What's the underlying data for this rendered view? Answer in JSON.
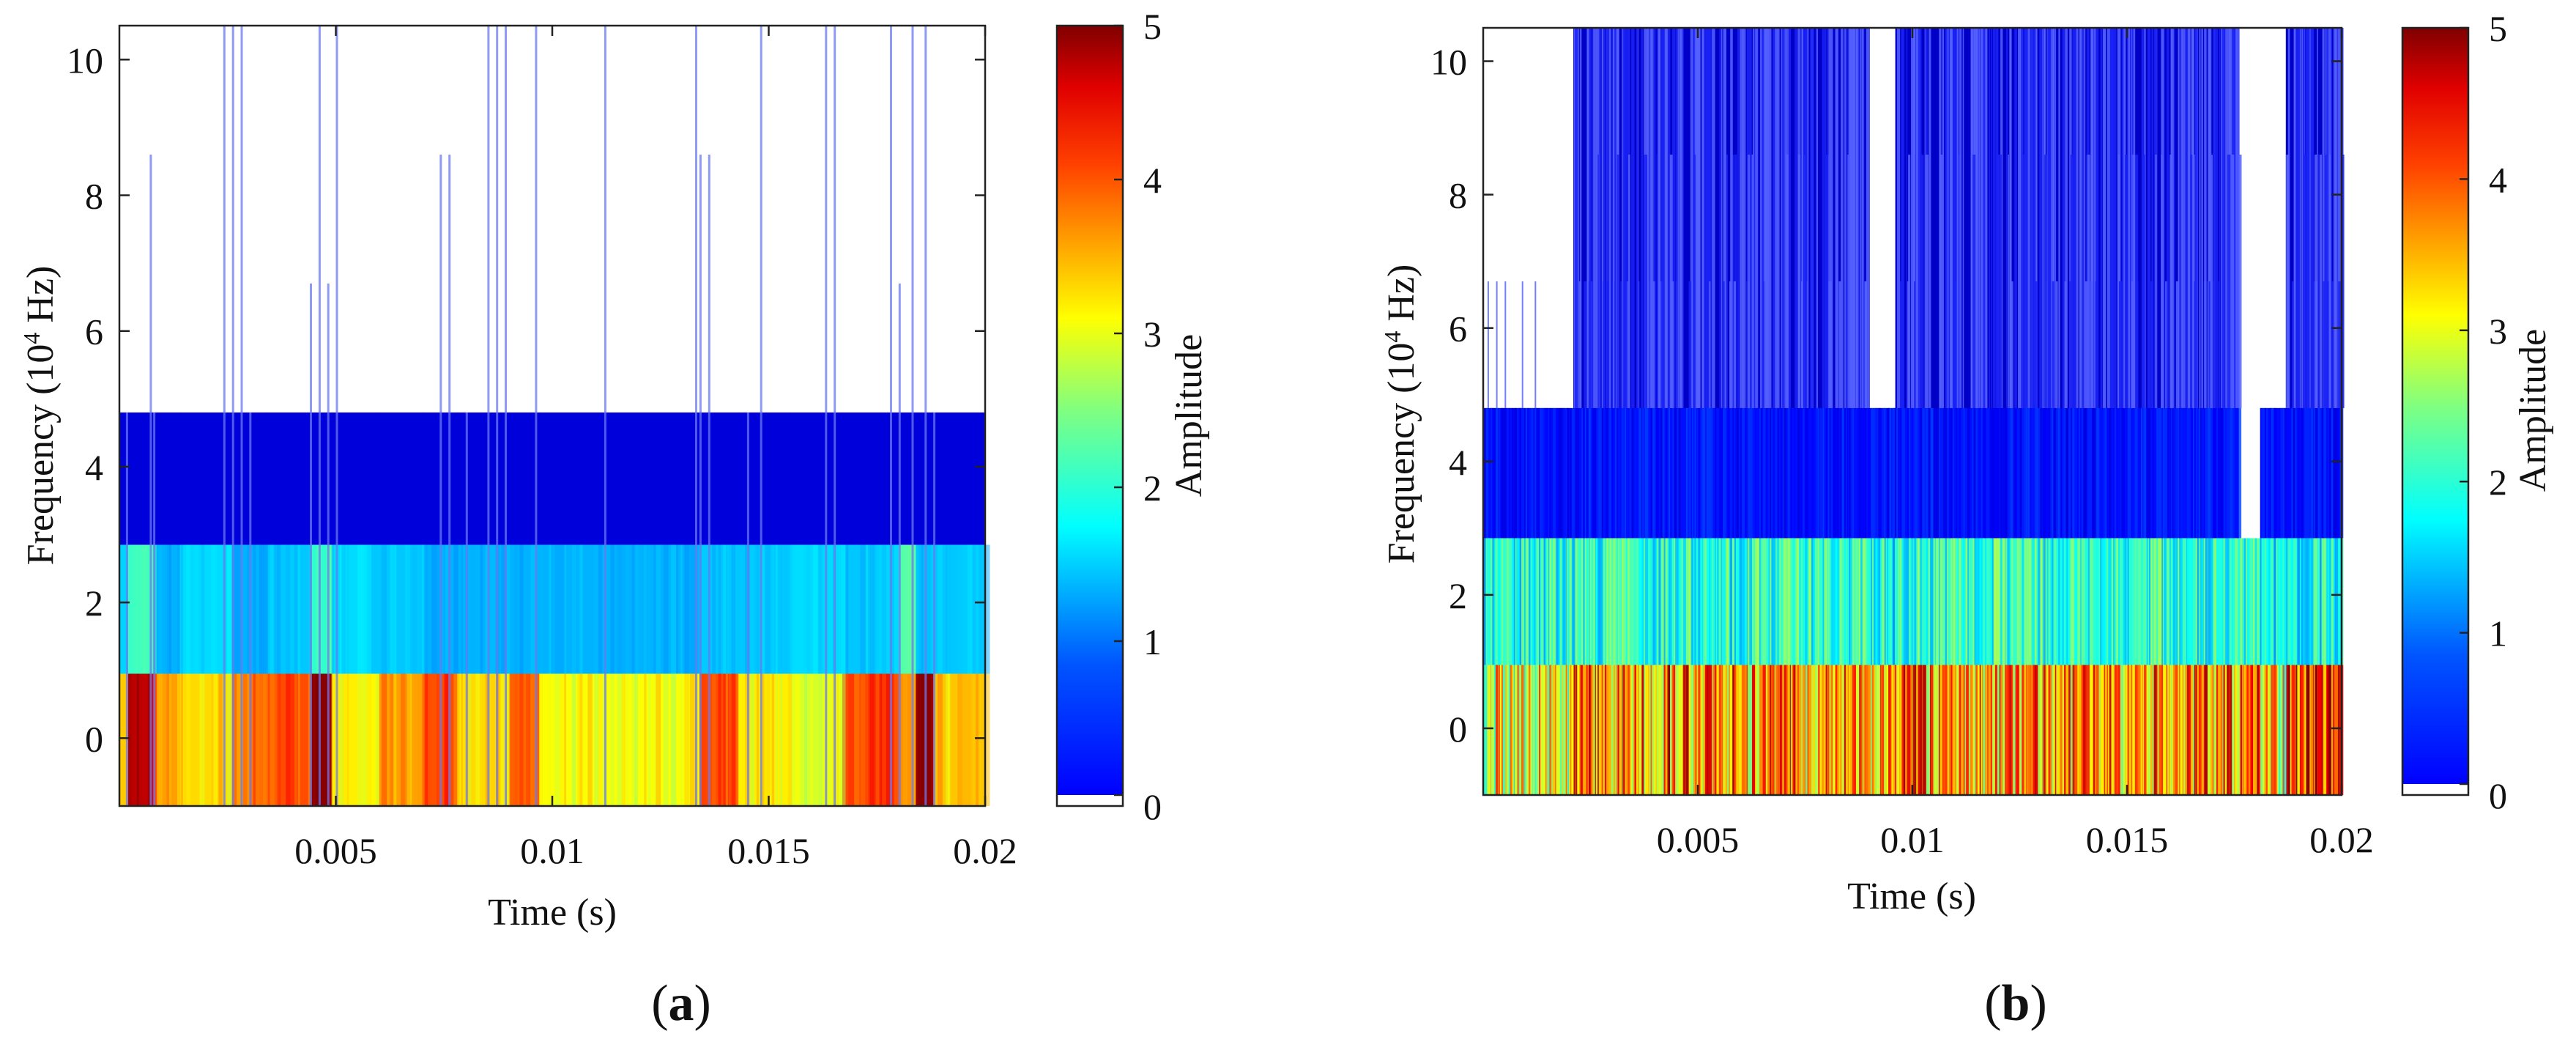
{
  "colormap": {
    "name": "jet",
    "stops": [
      "#00008f",
      "#0000ff",
      "#00ffff",
      "#ffff00",
      "#ff0000",
      "#800000"
    ],
    "below_min_color": "#ffffff"
  },
  "chart_data": [
    {
      "type": "heatmap",
      "panel_label": "a",
      "xlabel": "Time (s)",
      "ylabel_prefix": "Frequency (10",
      "ylabel_exp": "4",
      "ylabel_suffix": " Hz)",
      "colorbar_label": "Amplitude",
      "xlim": [
        0,
        0.02
      ],
      "ylim": [
        -1,
        10.5
      ],
      "clim": [
        0,
        5
      ],
      "xticks": [
        0.005,
        0.01,
        0.015,
        0.02
      ],
      "xtick_labels": [
        "0.005",
        "0.01",
        "0.015",
        "0.02"
      ],
      "yticks": [
        0,
        2,
        4,
        6,
        8,
        10
      ],
      "ytick_labels": [
        "0",
        "2",
        "4",
        "6",
        "8",
        "10"
      ],
      "cticks": [
        0,
        1,
        2,
        3,
        4,
        5
      ],
      "ctick_labels": [
        "0",
        "1",
        "2",
        "3",
        "4",
        "5"
      ],
      "frequency_bands": [
        {
          "low": -1,
          "high": 0.95,
          "base_amplitude": 3.6
        },
        {
          "low": 0.95,
          "high": 2.85,
          "base_amplitude": 1.6
        },
        {
          "low": 2.85,
          "high": 4.8,
          "base_amplitude": 0.45
        },
        {
          "low": 4.8,
          "high": 6.7,
          "base_amplitude": 0
        },
        {
          "low": 6.7,
          "high": 8.6,
          "base_amplitude": 0
        },
        {
          "low": 8.6,
          "high": 10.5,
          "base_amplitude": 0
        }
      ],
      "time_segments": [
        {
          "t0": 0.0,
          "t1": 0.0002,
          "amps": [
            3.4,
            1.7,
            0.45,
            0,
            0,
            0
          ]
        },
        {
          "t0": 0.0002,
          "t1": 0.0008,
          "amps": [
            4.7,
            2.2,
            0.45,
            0,
            0,
            0
          ]
        },
        {
          "t0": 0.0008,
          "t1": 0.0014,
          "amps": [
            3.6,
            1.5,
            0.45,
            0,
            0,
            0
          ]
        },
        {
          "t0": 0.0014,
          "t1": 0.0026,
          "amps": [
            3.3,
            1.7,
            0.45,
            0,
            0,
            0
          ]
        },
        {
          "t0": 0.0026,
          "t1": 0.0034,
          "amps": [
            3.8,
            1.5,
            0.45,
            0,
            0,
            0
          ]
        },
        {
          "t0": 0.0034,
          "t1": 0.0044,
          "amps": [
            4.0,
            1.6,
            0.45,
            0,
            0,
            0
          ]
        },
        {
          "t0": 0.0044,
          "t1": 0.0049,
          "amps": [
            5.0,
            2.2,
            0.45,
            0,
            0,
            0
          ]
        },
        {
          "t0": 0.0049,
          "t1": 0.006,
          "amps": [
            3.2,
            1.7,
            0.45,
            0,
            0,
            0
          ]
        },
        {
          "t0": 0.006,
          "t1": 0.007,
          "amps": [
            3.6,
            1.6,
            0.45,
            0,
            0,
            0
          ]
        },
        {
          "t0": 0.007,
          "t1": 0.0078,
          "amps": [
            4.0,
            1.5,
            0.45,
            0,
            0,
            0
          ]
        },
        {
          "t0": 0.0078,
          "t1": 0.009,
          "amps": [
            3.3,
            1.5,
            0.45,
            0,
            0,
            0
          ]
        },
        {
          "t0": 0.009,
          "t1": 0.0097,
          "amps": [
            3.9,
            1.5,
            0.45,
            0,
            0,
            0
          ]
        },
        {
          "t0": 0.0097,
          "t1": 0.0134,
          "amps": [
            3.1,
            1.5,
            0.45,
            0,
            0,
            0
          ]
        },
        {
          "t0": 0.0134,
          "t1": 0.0143,
          "amps": [
            4.0,
            1.6,
            0.45,
            0,
            0,
            0
          ]
        },
        {
          "t0": 0.0143,
          "t1": 0.0155,
          "amps": [
            3.2,
            1.6,
            0.45,
            0,
            0,
            0
          ]
        },
        {
          "t0": 0.0155,
          "t1": 0.0167,
          "amps": [
            3.0,
            1.7,
            0.45,
            0,
            0,
            0
          ]
        },
        {
          "t0": 0.0167,
          "t1": 0.018,
          "amps": [
            4.1,
            1.6,
            0.45,
            0,
            0,
            0
          ]
        },
        {
          "t0": 0.018,
          "t1": 0.0184,
          "amps": [
            3.6,
            2.3,
            0.45,
            0,
            0,
            0
          ]
        },
        {
          "t0": 0.0184,
          "t1": 0.0188,
          "amps": [
            4.9,
            1.6,
            0.45,
            0,
            0,
            0
          ]
        },
        {
          "t0": 0.0188,
          "t1": 0.02,
          "amps": [
            3.4,
            1.6,
            0.45,
            0,
            0,
            0
          ]
        }
      ],
      "spikes": [
        {
          "t": 0.00015,
          "top": 4.8,
          "amp": 0.5
        },
        {
          "t": 0.0007,
          "top": 8.6,
          "amp": 0.4
        },
        {
          "t": 0.00078,
          "top": 4.8,
          "amp": 0.5
        },
        {
          "t": 0.0024,
          "top": 10.5,
          "amp": 0.5
        },
        {
          "t": 0.0026,
          "top": 10.5,
          "amp": 0.5
        },
        {
          "t": 0.0028,
          "top": 10.5,
          "amp": 0.5
        },
        {
          "t": 0.003,
          "top": 4.8,
          "amp": 0.5
        },
        {
          "t": 0.0044,
          "top": 6.7,
          "amp": 0.5
        },
        {
          "t": 0.0046,
          "top": 10.5,
          "amp": 0.5
        },
        {
          "t": 0.0048,
          "top": 6.7,
          "amp": 0.5
        },
        {
          "t": 0.005,
          "top": 10.5,
          "amp": 0.5
        },
        {
          "t": 0.0074,
          "top": 8.6,
          "amp": 0.5
        },
        {
          "t": 0.0076,
          "top": 8.6,
          "amp": 0.5
        },
        {
          "t": 0.008,
          "top": 4.8,
          "amp": 0.5
        },
        {
          "t": 0.0085,
          "top": 10.5,
          "amp": 0.5
        },
        {
          "t": 0.0087,
          "top": 10.5,
          "amp": 0.5
        },
        {
          "t": 0.0089,
          "top": 10.5,
          "amp": 0.5
        },
        {
          "t": 0.0096,
          "top": 10.5,
          "amp": 0.5
        },
        {
          "t": 0.0112,
          "top": 10.5,
          "amp": 0.5
        },
        {
          "t": 0.0133,
          "top": 10.5,
          "amp": 0.5
        },
        {
          "t": 0.0134,
          "top": 8.6,
          "amp": 0.5
        },
        {
          "t": 0.0136,
          "top": 8.6,
          "amp": 0.5
        },
        {
          "t": 0.0145,
          "top": 4.8,
          "amp": 0.5
        },
        {
          "t": 0.0148,
          "top": 10.5,
          "amp": 0.5
        },
        {
          "t": 0.0163,
          "top": 10.5,
          "amp": 0.5
        },
        {
          "t": 0.0165,
          "top": 10.5,
          "amp": 0.5
        },
        {
          "t": 0.0178,
          "top": 10.5,
          "amp": 0.5
        },
        {
          "t": 0.018,
          "top": 6.7,
          "amp": 0.5
        },
        {
          "t": 0.0183,
          "top": 10.5,
          "amp": 0.5
        },
        {
          "t": 0.0186,
          "top": 10.5,
          "amp": 0.5
        },
        {
          "t": 0.0188,
          "top": 4.8,
          "amp": 0.5
        }
      ]
    },
    {
      "type": "heatmap",
      "panel_label": "b",
      "xlabel": "Time (s)",
      "ylabel_prefix": "Frequency (10",
      "ylabel_exp": "4",
      "ylabel_suffix": " Hz)",
      "colorbar_label": "Amplitude",
      "xlim": [
        0,
        0.02
      ],
      "ylim": [
        -1,
        10.5
      ],
      "clim": [
        0,
        5
      ],
      "xticks": [
        0.005,
        0.01,
        0.015,
        0.02
      ],
      "xtick_labels": [
        "0.005",
        "0.01",
        "0.015",
        "0.02"
      ],
      "yticks": [
        0,
        2,
        4,
        6,
        8,
        10
      ],
      "ytick_labels": [
        "0",
        "2",
        "4",
        "6",
        "8",
        "10"
      ],
      "cticks": [
        0,
        1,
        2,
        3,
        4,
        5
      ],
      "ctick_labels": [
        "0",
        "1",
        "2",
        "3",
        "4",
        "5"
      ],
      "frequency_bands": [
        {
          "low": -1,
          "high": 0.95,
          "base_amplitude": 3.5
        },
        {
          "low": 0.95,
          "high": 2.85,
          "base_amplitude": 2.0
        },
        {
          "low": 2.85,
          "high": 4.8,
          "base_amplitude": 0.7
        },
        {
          "low": 4.8,
          "high": 6.7,
          "base_amplitude": 0.35
        },
        {
          "low": 6.7,
          "high": 8.6,
          "base_amplitude": 0.35
        },
        {
          "low": 8.6,
          "high": 10.5,
          "base_amplitude": 0.35
        }
      ],
      "time_segments": [
        {
          "t0": 0.0,
          "t1": 0.0021,
          "amps": [
            3.0,
            2.0,
            0.7,
            0,
            0,
            0
          ]
        },
        {
          "t0": 0.0021,
          "t1": 0.009,
          "amps": [
            3.7,
            2.1,
            0.7,
            0.35,
            0.35,
            0.35
          ]
        },
        {
          "t0": 0.009,
          "t1": 0.0096,
          "amps": [
            3.3,
            2.0,
            0.7,
            0,
            0,
            0
          ]
        },
        {
          "t0": 0.0096,
          "t1": 0.0176,
          "amps": [
            3.7,
            2.1,
            0.7,
            0.35,
            0.35,
            0.35
          ]
        },
        {
          "t0": 0.0176,
          "t1": 0.0181,
          "amps": [
            4.1,
            2.2,
            0,
            0,
            0,
            0
          ]
        },
        {
          "t0": 0.0181,
          "t1": 0.0187,
          "amps": [
            3.0,
            1.9,
            0.7,
            0,
            0,
            0
          ]
        },
        {
          "t0": 0.0187,
          "t1": 0.02,
          "amps": [
            4.2,
            2.0,
            0.7,
            0.35,
            0.35,
            0.35
          ]
        }
      ]
    }
  ]
}
